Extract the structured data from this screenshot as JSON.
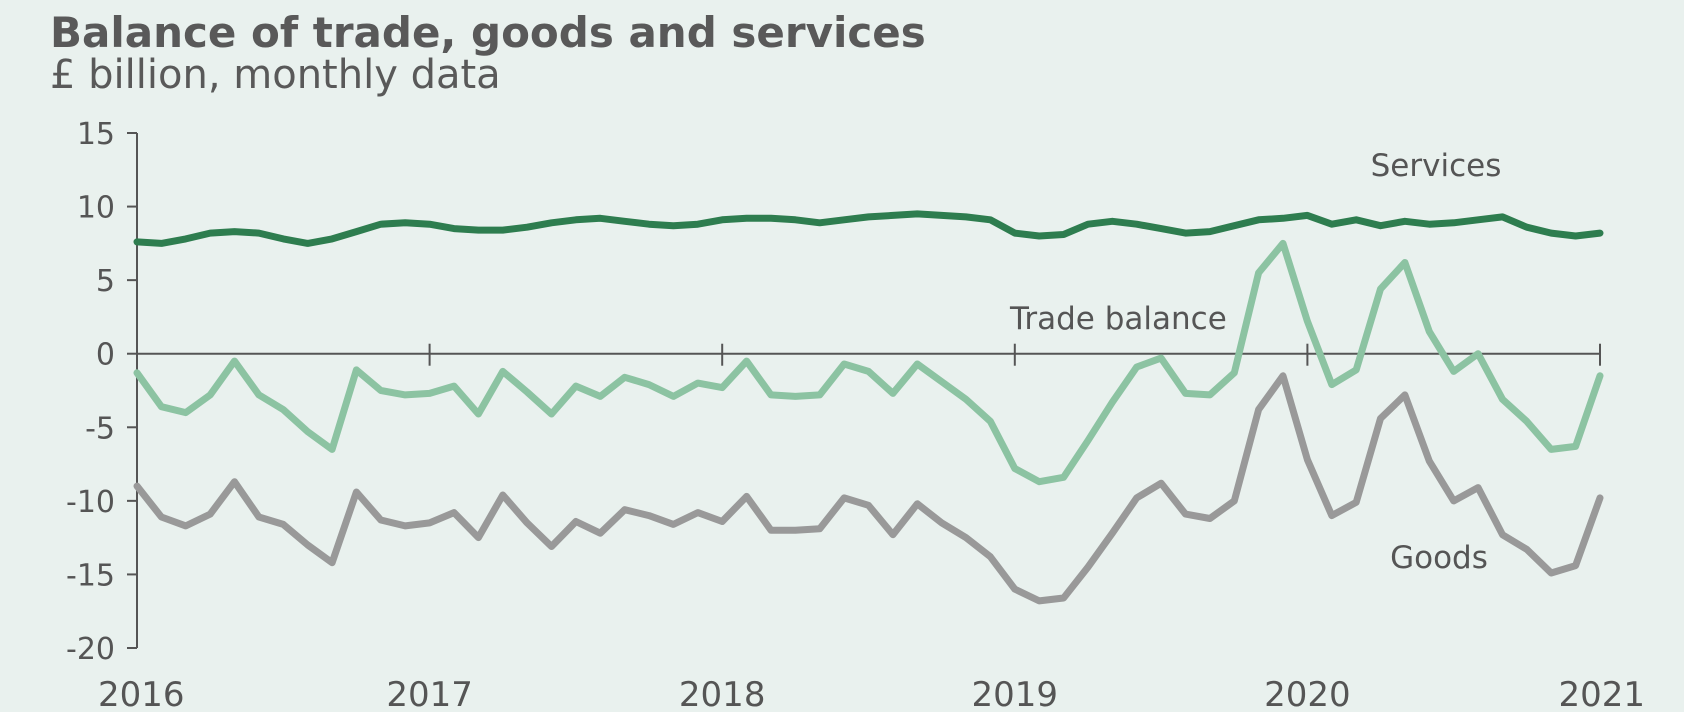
{
  "chart_data": {
    "type": "line",
    "title": "Balance of trade, goods and services",
    "subtitle": "£ billion, monthly data",
    "xlabel": "",
    "ylabel": "",
    "ylim": [
      -20,
      15
    ],
    "yticks": [
      15,
      10,
      5,
      0,
      -5,
      -10,
      -15,
      -20
    ],
    "xticks": [
      "2016",
      "2017",
      "2018",
      "2019",
      "2020",
      "2021"
    ],
    "grid": false,
    "series": [
      {
        "name": "Services",
        "color": "#2e7d4f",
        "values": [
          7.6,
          7.5,
          7.8,
          8.2,
          8.3,
          8.2,
          7.8,
          7.5,
          7.8,
          8.3,
          8.8,
          8.9,
          8.8,
          8.5,
          8.4,
          8.4,
          8.6,
          8.9,
          9.1,
          9.2,
          9.0,
          8.8,
          8.7,
          8.8,
          9.1,
          9.2,
          9.2,
          9.1,
          8.9,
          9.1,
          9.3,
          9.4,
          9.5,
          9.4,
          9.3,
          9.1,
          8.2,
          8.0,
          8.1,
          8.8,
          9.0,
          8.8,
          8.5,
          8.2,
          8.3,
          8.7,
          9.1,
          9.2,
          9.4,
          8.8,
          9.1,
          8.7,
          9.0,
          8.8,
          8.9,
          9.1,
          9.3,
          8.6,
          8.2,
          8.0,
          8.2
        ]
      },
      {
        "name": "Trade balance",
        "color": "#8cc3a2",
        "values": [
          -1.3,
          -3.6,
          -4.0,
          -2.8,
          -0.5,
          -2.8,
          -3.8,
          -5.3,
          -6.5,
          -1.1,
          -2.5,
          -2.8,
          -2.7,
          -2.2,
          -4.1,
          -1.2,
          -2.6,
          -4.1,
          -2.2,
          -2.9,
          -1.6,
          -2.1,
          -2.9,
          -2.0,
          -2.3,
          -0.5,
          -2.8,
          -2.9,
          -2.8,
          -0.7,
          -1.2,
          -2.7,
          -0.7,
          -1.9,
          -3.1,
          -4.6,
          -7.8,
          -8.7,
          -8.4,
          -5.9,
          -3.3,
          -0.9,
          -0.3,
          -2.7,
          -2.8,
          -1.3,
          5.5,
          7.5,
          2.2,
          -2.1,
          -1.1,
          4.4,
          6.2,
          1.5,
          -1.2,
          0.0,
          -3.1,
          -4.6,
          -6.5,
          -6.3,
          -1.5
        ]
      },
      {
        "name": "Goods",
        "color": "#999999",
        "values": [
          -9.0,
          -11.1,
          -11.7,
          -10.9,
          -8.7,
          -11.1,
          -11.6,
          -13.0,
          -14.2,
          -9.4,
          -11.3,
          -11.7,
          -11.5,
          -10.8,
          -12.5,
          -9.6,
          -11.5,
          -13.1,
          -11.4,
          -12.2,
          -10.6,
          -11.0,
          -11.6,
          -10.8,
          -11.4,
          -9.7,
          -12.0,
          -12.0,
          -11.9,
          -9.8,
          -10.3,
          -12.3,
          -10.2,
          -11.5,
          -12.5,
          -13.8,
          -16.0,
          -16.8,
          -16.6,
          -14.5,
          -12.2,
          -9.8,
          -8.8,
          -10.9,
          -11.2,
          -10.0,
          -3.8,
          -1.5,
          -7.2,
          -11.0,
          -10.1,
          -4.4,
          -2.8,
          -7.3,
          -10.0,
          -9.1,
          -12.3,
          -13.3,
          -14.9,
          -14.4,
          -9.8
        ]
      }
    ],
    "annotations": [
      {
        "series": "Services",
        "text": "Services"
      },
      {
        "series": "Trade balance",
        "text": "Trade balance"
      },
      {
        "series": "Goods",
        "text": "Goods"
      }
    ]
  }
}
